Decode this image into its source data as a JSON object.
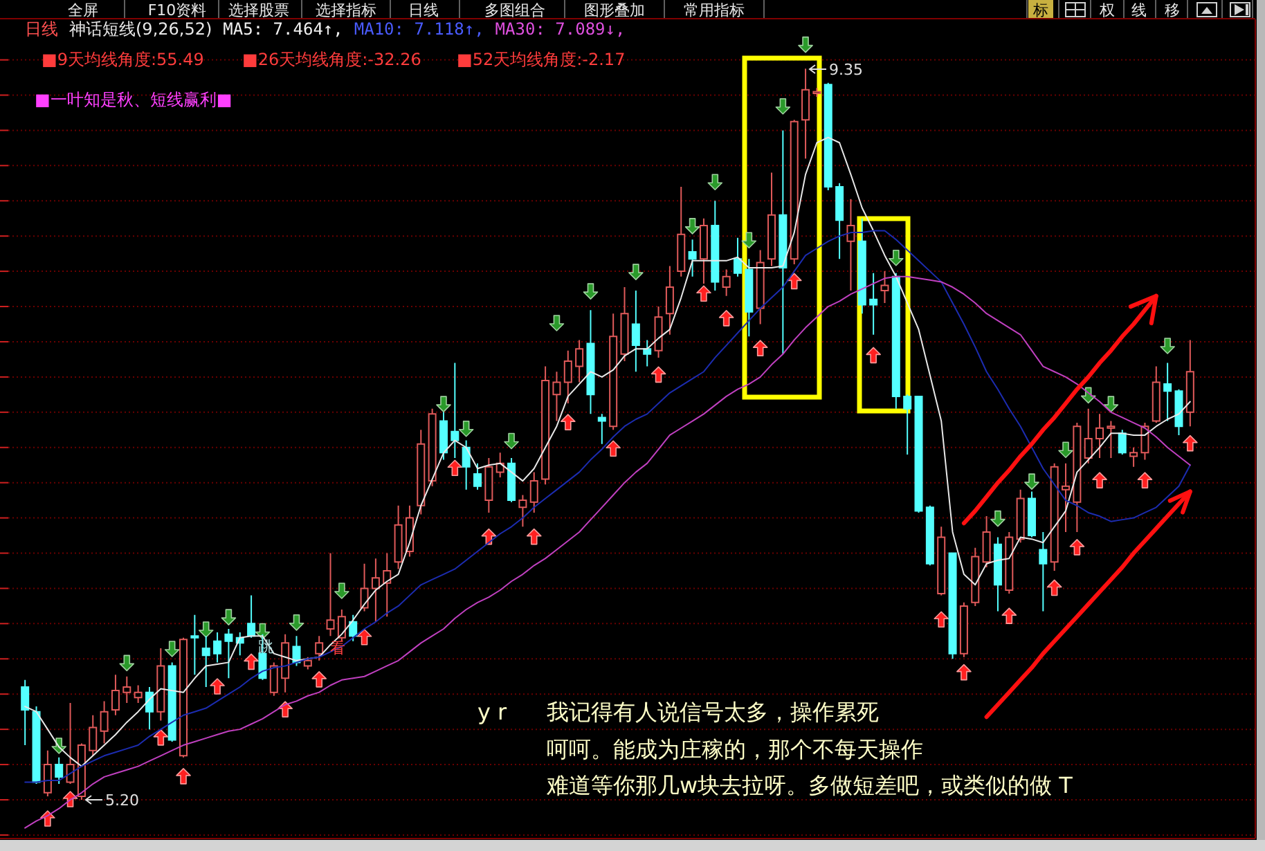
{
  "chart_data": {
    "type": "candlestick",
    "title": "日线",
    "subtitle": "神话短线(9,26,52)",
    "categories": [
      null,
      null,
      null,
      null,
      null,
      null,
      null,
      null,
      null,
      null,
      null,
      null,
      null,
      null,
      null,
      null,
      null,
      null,
      null,
      null,
      null,
      null,
      null,
      null,
      null,
      null,
      null,
      null,
      null,
      null,
      null,
      null,
      null,
      null,
      null,
      null,
      null,
      null,
      null,
      null,
      null,
      null,
      null,
      null,
      null,
      null,
      null,
      null,
      null,
      null,
      null,
      null,
      null,
      null,
      null,
      null,
      null,
      null,
      null,
      null,
      null,
      null,
      null,
      null,
      null,
      null,
      null,
      null,
      null,
      null,
      null,
      null,
      null,
      null,
      null,
      null,
      null,
      null,
      null,
      null,
      null,
      null,
      null,
      null,
      null,
      null,
      null,
      null,
      null,
      null,
      null,
      null,
      null,
      null,
      null,
      null,
      null,
      null,
      null,
      null,
      null,
      null,
      null,
      null
    ],
    "ohlc": [
      [
        5.84,
        5.88,
        5.51,
        5.71
      ],
      [
        5.7,
        5.73,
        5.29,
        5.3
      ],
      [
        5.24,
        5.48,
        5.22,
        5.4
      ],
      [
        5.4,
        5.44,
        5.29,
        5.33
      ],
      [
        5.3,
        5.75,
        5.29,
        5.4
      ],
      [
        5.22,
        5.52,
        5.2,
        5.51
      ],
      [
        5.48,
        5.68,
        5.45,
        5.61
      ],
      [
        5.59,
        5.76,
        5.52,
        5.7
      ],
      [
        5.71,
        5.91,
        5.68,
        5.82
      ],
      [
        5.81,
        5.9,
        5.75,
        5.84
      ],
      [
        5.78,
        5.85,
        5.75,
        5.81
      ],
      [
        5.81,
        5.84,
        5.6,
        5.7
      ],
      [
        5.7,
        6.06,
        5.65,
        5.96
      ],
      [
        5.96,
        5.98,
        5.53,
        5.54
      ],
      [
        5.45,
        6.12,
        5.44,
        6.11
      ],
      [
        6.13,
        6.25,
        5.91,
        6.12
      ],
      [
        6.06,
        6.13,
        5.84,
        6.02
      ],
      [
        6.1,
        6.15,
        5.98,
        6.03
      ],
      [
        6.14,
        6.17,
        5.89,
        6.1
      ],
      [
        6.12,
        6.15,
        6.02,
        6.09
      ],
      [
        6.2,
        6.36,
        6.12,
        6.13
      ],
      [
        6.03,
        6.14,
        5.88,
        5.89
      ],
      [
        5.81,
        5.98,
        5.79,
        5.96
      ],
      [
        5.89,
        6.14,
        5.81,
        6.09
      ],
      [
        6.07,
        6.13,
        5.96,
        5.98
      ],
      [
        5.96,
        6.01,
        5.94,
        5.99
      ],
      [
        6.03,
        6.13,
        5.99,
        6.09
      ],
      [
        6.17,
        6.6,
        6.13,
        6.22
      ],
      [
        6.12,
        6.28,
        6.1,
        6.24
      ],
      [
        6.21,
        6.25,
        6.1,
        6.13
      ],
      [
        6.29,
        6.54,
        6.27,
        6.4
      ],
      [
        6.4,
        6.57,
        6.21,
        6.46
      ],
      [
        6.43,
        6.6,
        6.24,
        6.5
      ],
      [
        6.55,
        6.87,
        6.51,
        6.76
      ],
      [
        6.61,
        6.87,
        6.58,
        6.8
      ],
      [
        6.87,
        7.3,
        6.82,
        7.22
      ],
      [
        7.01,
        7.42,
        6.98,
        7.39
      ],
      [
        7.35,
        7.4,
        7.13,
        7.17
      ],
      [
        7.29,
        7.68,
        7.14,
        7.24
      ],
      [
        7.2,
        7.24,
        6.96,
        7.09
      ],
      [
        7.05,
        7.11,
        6.96,
        6.98
      ],
      [
        6.9,
        7.14,
        6.83,
        7.09
      ],
      [
        7.06,
        7.17,
        7.03,
        7.11
      ],
      [
        7.11,
        7.14,
        6.89,
        6.9
      ],
      [
        6.86,
        6.93,
        6.75,
        6.9
      ],
      [
        6.89,
        7.06,
        6.83,
        7.01
      ],
      [
        7.02,
        7.66,
        6.99,
        7.58
      ],
      [
        7.5,
        7.63,
        7.35,
        7.57
      ],
      [
        7.57,
        7.75,
        7.45,
        7.69
      ],
      [
        7.66,
        7.81,
        7.57,
        7.76
      ],
      [
        7.79,
        7.98,
        7.39,
        7.5
      ],
      [
        7.37,
        7.39,
        7.22,
        7.35
      ],
      [
        7.32,
        7.96,
        7.3,
        7.83
      ],
      [
        7.73,
        8.11,
        7.69,
        7.96
      ],
      [
        7.9,
        8.09,
        7.63,
        7.78
      ],
      [
        7.76,
        7.81,
        7.66,
        7.73
      ],
      [
        7.75,
        8.0,
        7.71,
        7.94
      ],
      [
        7.96,
        8.23,
        7.84,
        8.11
      ],
      [
        8.2,
        8.68,
        8.17,
        8.41
      ],
      [
        8.31,
        8.38,
        8.17,
        8.27
      ],
      [
        8.27,
        8.5,
        8.13,
        8.46
      ],
      [
        8.46,
        8.6,
        8.09,
        8.14
      ],
      [
        8.11,
        8.21,
        8.06,
        8.17
      ],
      [
        8.27,
        8.39,
        8.17,
        8.19
      ],
      [
        8.21,
        8.27,
        7.83,
        7.97
      ],
      [
        7.99,
        8.32,
        7.9,
        8.25
      ],
      [
        8.27,
        8.76,
        8.23,
        8.52
      ],
      [
        8.52,
        9.0,
        7.73,
        8.22
      ],
      [
        8.27,
        9.06,
        8.24,
        9.05
      ],
      [
        9.06,
        9.35,
        8.84,
        9.23
      ],
      [
        9.21,
        9.24,
        9.19,
        9.22
      ],
      [
        9.26,
        9.27,
        8.66,
        8.68
      ],
      [
        8.68,
        8.7,
        8.27,
        8.49
      ],
      [
        8.37,
        8.61,
        8.09,
        8.46
      ],
      [
        8.37,
        8.5,
        7.96,
        8.01
      ],
      [
        8.04,
        8.19,
        7.84,
        8.01
      ],
      [
        8.09,
        8.2,
        8.02,
        8.12
      ],
      [
        8.17,
        8.19,
        7.42,
        7.49
      ],
      [
        7.49,
        7.5,
        7.16,
        7.42
      ],
      [
        7.49,
        7.49,
        6.83,
        6.84
      ],
      [
        6.86,
        6.87,
        6.53,
        6.54
      ],
      [
        6.37,
        6.75,
        6.36,
        6.69
      ],
      [
        6.6,
        6.6,
        6.0,
        6.03
      ],
      [
        6.03,
        6.32,
        6.01,
        6.3
      ],
      [
        6.32,
        6.63,
        6.3,
        6.58
      ],
      [
        6.55,
        6.81,
        6.52,
        6.72
      ],
      [
        6.65,
        6.69,
        6.27,
        6.42
      ],
      [
        6.39,
        6.72,
        6.37,
        6.69
      ],
      [
        6.68,
        6.96,
        6.66,
        6.91
      ],
      [
        6.91,
        6.95,
        6.69,
        6.7
      ],
      [
        6.62,
        6.72,
        6.27,
        6.54
      ],
      [
        6.55,
        7.11,
        6.5,
        7.09
      ],
      [
        6.96,
        7.11,
        6.72,
        6.98
      ],
      [
        6.89,
        7.34,
        6.72,
        7.32
      ],
      [
        7.14,
        7.42,
        7.11,
        7.25
      ],
      [
        7.25,
        7.39,
        7.14,
        7.31
      ],
      [
        7.31,
        7.35,
        7.14,
        7.32
      ],
      [
        7.28,
        7.3,
        7.16,
        7.17
      ],
      [
        7.15,
        7.2,
        7.09,
        7.17
      ],
      [
        7.17,
        7.34,
        7.13,
        7.32
      ],
      [
        7.35,
        7.66,
        7.34,
        7.57
      ],
      [
        7.56,
        7.68,
        7.35,
        7.52
      ],
      [
        7.52,
        7.53,
        7.27,
        7.32
      ],
      [
        7.4,
        7.81,
        7.32,
        7.63
      ]
    ],
    "colors": [
      "#54ffff",
      "#54ffff",
      "#e05a5a",
      "#54ffff",
      "#e05a5a",
      "#e05a5a",
      "#e05a5a",
      "#e05a5a",
      "#e05a5a",
      "#e05a5a",
      "#e05a5a",
      "#54ffff",
      "#e05a5a",
      "#54ffff",
      "#e05a5a",
      "#54ffff",
      "#54ffff",
      "#54ffff",
      "#54ffff",
      "#54ffff",
      "#54ffff",
      "#54ffff",
      "#e05a5a",
      "#e05a5a",
      "#54ffff",
      "#e05a5a",
      "#e05a5a",
      "#e05a5a",
      "#e05a5a",
      "#54ffff",
      "#e05a5a",
      "#e05a5a",
      "#e05a5a",
      "#e05a5a",
      "#e05a5a",
      "#e05a5a",
      "#e05a5a",
      "#54ffff",
      "#54ffff",
      "#54ffff",
      "#54ffff",
      "#e05a5a",
      "#e05a5a",
      "#54ffff",
      "#e05a5a",
      "#e05a5a",
      "#e05a5a",
      "#e05a5a",
      "#e05a5a",
      "#e05a5a",
      "#54ffff",
      "#54ffff",
      "#e05a5a",
      "#e05a5a",
      "#54ffff",
      "#54ffff",
      "#e05a5a",
      "#e05a5a",
      "#e05a5a",
      "#54ffff",
      "#e05a5a",
      "#54ffff",
      "#e05a5a",
      "#54ffff",
      "#54ffff",
      "#e05a5a",
      "#e05a5a",
      "#54ffff",
      "#e05a5a",
      "#e05a5a",
      "#e05a5a",
      "#54ffff",
      "#54ffff",
      "#e05a5a",
      "#54ffff",
      "#54ffff",
      "#e05a5a",
      "#54ffff",
      "#54ffff",
      "#54ffff",
      "#54ffff",
      "#e05a5a",
      "#54ffff",
      "#e05a5a",
      "#e05a5a",
      "#e05a5a",
      "#54ffff",
      "#e05a5a",
      "#e05a5a",
      "#54ffff",
      "#54ffff",
      "#e05a5a",
      "#e05a5a",
      "#e05a5a",
      "#e05a5a",
      "#e05a5a",
      "#e05a5a",
      "#54ffff",
      "#e05a5a",
      "#e05a5a",
      "#e05a5a",
      "#54ffff",
      "#54ffff",
      "#e05a5a"
    ],
    "series": [
      {
        "type": "line",
        "color": "#e8e8e8",
        "values": [
          5.73,
          5.7,
          5.6,
          5.5,
          5.44,
          5.39,
          5.45,
          5.51,
          5.57,
          5.64,
          5.7,
          5.77,
          5.83,
          5.82,
          5.81,
          5.89,
          5.96,
          5.97,
          5.98,
          6.12,
          6.13,
          6.13,
          6.03,
          6.01,
          5.99,
          6.0,
          6.01,
          6.08,
          6.14,
          6.22,
          6.31,
          6.39,
          6.44,
          6.48,
          6.66,
          6.87,
          7.02,
          7.17,
          7.24,
          7.2,
          7.08,
          7.1,
          7.11,
          7.06,
          7.01,
          7.08,
          7.2,
          7.32,
          7.49,
          7.56,
          7.63,
          7.6,
          7.64,
          7.72,
          7.76,
          7.76,
          7.82,
          7.87,
          8.05,
          8.26,
          8.26,
          8.26,
          8.26,
          8.28,
          8.22,
          8.22,
          8.22,
          8.23,
          8.42,
          8.75,
          8.93,
          8.96,
          8.93,
          8.75,
          8.56,
          8.43,
          8.29,
          8.17,
          8.02,
          7.87,
          7.61,
          7.35,
          6.72,
          6.48,
          6.42,
          6.54,
          6.56,
          6.57,
          6.69,
          6.68,
          6.66,
          6.75,
          6.84,
          7.06,
          7.13,
          7.2,
          7.28,
          7.28,
          7.27,
          7.27,
          7.32,
          7.36,
          7.39,
          7.46
        ]
      },
      {
        "type": "line",
        "color": "#1c2cb0",
        "values": [
          5.3,
          5.3,
          5.31,
          5.31,
          5.35,
          5.39,
          5.42,
          5.45,
          5.47,
          5.49,
          5.51,
          5.56,
          5.6,
          5.64,
          5.68,
          5.7,
          5.72,
          5.76,
          5.8,
          5.84,
          5.89,
          5.93,
          5.95,
          5.96,
          5.98,
          6.0,
          6.01,
          6.04,
          6.07,
          6.12,
          6.17,
          6.21,
          6.26,
          6.3,
          6.36,
          6.42,
          6.45,
          6.48,
          6.51,
          6.56,
          6.61,
          6.66,
          6.71,
          6.75,
          6.8,
          6.86,
          6.91,
          6.96,
          7.01,
          7.06,
          7.13,
          7.19,
          7.26,
          7.32,
          7.36,
          7.39,
          7.45,
          7.51,
          7.55,
          7.59,
          7.63,
          7.71,
          7.78,
          7.85,
          7.92,
          7.99,
          8.05,
          8.11,
          8.2,
          8.29,
          8.33,
          8.37,
          8.4,
          8.42,
          8.42,
          8.43,
          8.43,
          8.38,
          8.32,
          8.26,
          8.2,
          8.14,
          8.02,
          7.9,
          7.77,
          7.63,
          7.53,
          7.42,
          7.32,
          7.2,
          7.08,
          6.99,
          6.9,
          6.87,
          6.83,
          6.81,
          6.78,
          6.79,
          6.8,
          6.83,
          6.86,
          6.92,
          6.98,
          7.1
        ]
      },
      {
        "type": "line",
        "color": "#c040c0",
        "values": [
          5.04,
          5.08,
          5.11,
          5.15,
          5.2,
          5.24,
          5.29,
          5.33,
          5.35,
          5.37,
          5.39,
          5.42,
          5.45,
          5.48,
          5.51,
          5.53,
          5.55,
          5.57,
          5.59,
          5.6,
          5.63,
          5.66,
          5.7,
          5.74,
          5.76,
          5.79,
          5.81,
          5.85,
          5.88,
          5.89,
          5.9,
          5.93,
          5.96,
          5.99,
          6.04,
          6.09,
          6.13,
          6.17,
          6.23,
          6.28,
          6.32,
          6.35,
          6.39,
          6.44,
          6.48,
          6.53,
          6.57,
          6.62,
          6.67,
          6.72,
          6.79,
          6.86,
          6.93,
          7.0,
          7.06,
          7.11,
          7.19,
          7.27,
          7.31,
          7.35,
          7.39,
          7.44,
          7.49,
          7.53,
          7.56,
          7.6,
          7.67,
          7.73,
          7.81,
          7.88,
          7.94,
          8.0,
          8.03,
          8.07,
          8.1,
          8.13,
          8.16,
          8.17,
          8.17,
          8.16,
          8.15,
          8.14,
          8.11,
          8.07,
          8.02,
          7.96,
          7.92,
          7.88,
          7.84,
          7.75,
          7.66,
          7.63,
          7.6,
          7.56,
          7.51,
          7.46,
          7.4,
          7.37,
          7.34,
          7.31,
          7.26,
          7.2,
          7.15,
          7.1
        ]
      },
      {
        "type": "scatter",
        "color": "#2a9a2a",
        "marker": "triangle",
        "values": [
          null,
          null,
          null,
          5.51,
          null,
          null,
          null,
          null,
          null,
          5.98,
          null,
          null,
          null,
          6.06,
          null,
          null,
          6.17,
          null,
          6.24,
          null,
          null,
          6.16,
          null,
          null,
          6.21,
          null,
          null,
          null,
          6.39,
          null,
          null,
          null,
          null,
          null,
          null,
          null,
          null,
          7.45,
          null,
          7.31,
          null,
          null,
          null,
          7.24,
          null,
          null,
          null,
          7.91,
          null,
          null,
          8.09,
          null,
          null,
          null,
          8.2,
          null,
          null,
          null,
          null,
          8.46,
          null,
          8.71,
          null,
          null,
          8.38,
          null,
          null,
          9.14,
          null,
          9.49,
          null,
          null,
          null,
          null,
          null,
          null,
          null,
          8.28,
          null,
          null,
          null,
          null,
          null,
          null,
          null,
          null,
          6.8,
          null,
          null,
          7.01,
          null,
          null,
          7.19,
          null,
          7.5,
          null,
          7.45,
          null,
          null,
          null,
          null,
          7.78,
          null,
          null
        ]
      },
      {
        "type": "scatter",
        "color": "#ff2020",
        "marker": "triangle",
        "values": [
          null,
          null,
          5.09,
          null,
          5.2,
          null,
          null,
          null,
          null,
          null,
          null,
          null,
          5.55,
          null,
          5.33,
          null,
          null,
          5.84,
          null,
          null,
          5.98,
          null,
          null,
          5.71,
          null,
          null,
          5.88,
          null,
          null,
          null,
          6.12,
          null,
          null,
          null,
          null,
          null,
          null,
          null,
          7.08,
          null,
          null,
          6.69,
          null,
          null,
          null,
          6.69,
          null,
          null,
          7.34,
          null,
          null,
          null,
          7.19,
          null,
          null,
          null,
          7.61,
          null,
          null,
          null,
          8.07,
          null,
          7.93,
          null,
          null,
          7.76,
          null,
          null,
          8.14,
          null,
          null,
          null,
          null,
          null,
          null,
          7.72,
          null,
          null,
          null,
          null,
          null,
          6.22,
          null,
          5.92,
          null,
          null,
          null,
          6.24,
          null,
          null,
          null,
          6.4,
          null,
          6.63,
          null,
          7.01,
          null,
          null,
          null,
          7.01,
          null,
          null,
          null,
          7.22
        ]
      },
      {
        "type": "line",
        "color": "#ff1010",
        "values": [
          null,
          null,
          null,
          null,
          null,
          null,
          null,
          null,
          null,
          null,
          null,
          null,
          null,
          null,
          null,
          null,
          null,
          null,
          null,
          null,
          null,
          null,
          null,
          null,
          null,
          null,
          null,
          null,
          null,
          null,
          null,
          null,
          null,
          null,
          null,
          null,
          null,
          null,
          null,
          null,
          null,
          null,
          null,
          null,
          null,
          null,
          null,
          null,
          null,
          null,
          null,
          null,
          null,
          null,
          null,
          null,
          null,
          null,
          null,
          null,
          null,
          null,
          null,
          null,
          null,
          null,
          null,
          null,
          null,
          null,
          null,
          null,
          null,
          null,
          null,
          null,
          null,
          null,
          null,
          null,
          null,
          null,
          null,
          6.77,
          6.84,
          6.92,
          7.0,
          7.07,
          7.15,
          7.22,
          7.3,
          7.37,
          7.45,
          7.53,
          7.6,
          7.68,
          7.75,
          7.83,
          7.9,
          7.98,
          8.06,
          null,
          null,
          null
        ]
      },
      {
        "type": "line",
        "color": "#ff1010",
        "values": [
          null,
          null,
          null,
          null,
          null,
          null,
          null,
          null,
          null,
          null,
          null,
          null,
          null,
          null,
          null,
          null,
          null,
          null,
          null,
          null,
          null,
          null,
          null,
          null,
          null,
          null,
          null,
          null,
          null,
          null,
          null,
          null,
          null,
          null,
          null,
          null,
          null,
          null,
          null,
          null,
          null,
          null,
          null,
          null,
          null,
          null,
          null,
          null,
          null,
          null,
          null,
          null,
          null,
          null,
          null,
          null,
          null,
          null,
          null,
          null,
          null,
          null,
          null,
          null,
          null,
          null,
          null,
          null,
          null,
          null,
          null,
          null,
          null,
          null,
          null,
          null,
          null,
          null,
          null,
          null,
          null,
          null,
          null,
          null,
          null,
          5.67,
          5.74,
          5.81,
          5.88,
          5.95,
          6.03,
          6.1,
          6.17,
          6.24,
          6.31,
          6.38,
          6.45,
          6.52,
          6.6,
          6.67,
          6.74,
          6.81,
          6.88,
          6.95
        ]
      }
    ],
    "ylim": [
      4.98,
      9.63
    ],
    "yticks": [
      {
        "value": 5.0,
        "label": null
      },
      {
        "value": 5.2,
        "label": null
      },
      {
        "value": 5.4,
        "label": null
      },
      {
        "value": 5.6,
        "label": null
      },
      {
        "value": 5.8,
        "label": null
      },
      {
        "value": 6.0,
        "label": null
      },
      {
        "value": 6.2,
        "label": null
      },
      {
        "value": 6.4,
        "label": null
      },
      {
        "value": 6.6,
        "label": null
      },
      {
        "value": 6.8,
        "label": null
      },
      {
        "value": 7.0,
        "label": null
      },
      {
        "value": 7.2,
        "label": null
      },
      {
        "value": 7.4,
        "label": null
      },
      {
        "value": 7.6,
        "label": null
      },
      {
        "value": 7.8,
        "label": null
      },
      {
        "value": 8.0,
        "label": null
      },
      {
        "value": 8.2,
        "label": null
      },
      {
        "value": 8.4,
        "label": null
      },
      {
        "value": 8.6,
        "label": null
      },
      {
        "value": 8.8,
        "label": null
      },
      {
        "value": 9.0,
        "label": null
      },
      {
        "value": 9.2,
        "label": null
      },
      {
        "value": 9.4,
        "label": null
      }
    ],
    "grid": "y",
    "annotations": [
      "全屏",
      "F10资料",
      "选择股票",
      "选择指标",
      "日线",
      "多图组合",
      "图形叠加",
      "常用指标",
      "标",
      "权",
      "线",
      "移",
      "MA5: 7.464↑,",
      "MA10: 7.118↑,",
      "MA30: 7.089↓,",
      "■9天均线角度:55.49",
      "■26天均线角度:-32.26",
      "■52天均线角度:-2.17",
      "■一叶知是秋、短线赢利■",
      "9.35",
      "5.20",
      "跳",
      "看",
      "y r",
      "我记得有人说信号太多，操作累死",
      "呵呵。能成为庄稼的，那个不每天操作",
      "难道等你那几w块去拉呀。多做短差吧，或类似的做 T"
    ]
  }
}
